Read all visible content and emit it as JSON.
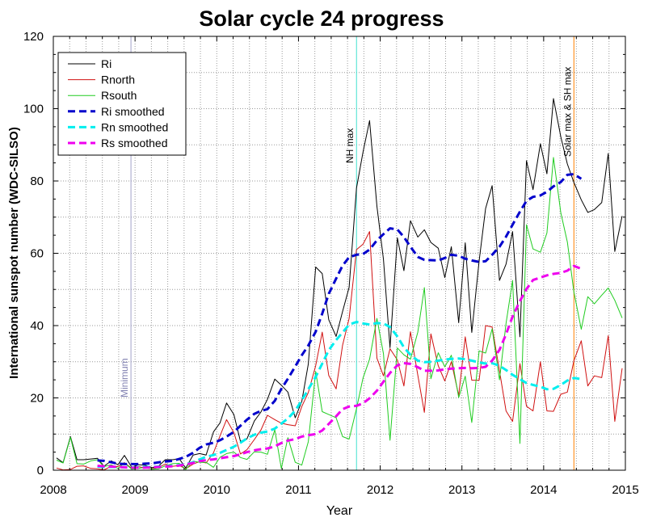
{
  "chart_data": {
    "type": "line",
    "title": "Solar cycle 24 progress",
    "xlabel": "Year",
    "ylabel": "International sunspot number (WDC-SILSO)",
    "xlim": [
      2008,
      2015
    ],
    "ylim": [
      0,
      120
    ],
    "x_ticks": [
      2008,
      2009,
      2010,
      2011,
      2012,
      2013,
      2014,
      2015
    ],
    "y_ticks": [
      0,
      20,
      40,
      60,
      80,
      100,
      120
    ],
    "grid": true,
    "legend_position": "top-left",
    "vertical_markers": [
      {
        "x": 2008.95,
        "label": "Minimum",
        "color": "#a0a0c8"
      },
      {
        "x": 2011.71,
        "label": "NH max",
        "color": "#40e0d0"
      },
      {
        "x": 2014.37,
        "label": "Solar max & SH max",
        "color": "#ff8000"
      }
    ],
    "series": [
      {
        "name": "Ri",
        "color": "#000000",
        "style": "solid",
        "width": 1,
        "x": [
          2008.04,
          2008.12,
          2008.21,
          2008.29,
          2008.37,
          2008.46,
          2008.54,
          2008.62,
          2008.71,
          2008.79,
          2008.87,
          2008.96,
          2009.04,
          2009.12,
          2009.21,
          2009.29,
          2009.37,
          2009.46,
          2009.54,
          2009.62,
          2009.71,
          2009.79,
          2009.87,
          2009.96,
          2010.04,
          2010.12,
          2010.21,
          2010.29,
          2010.37,
          2010.46,
          2010.54,
          2010.62,
          2010.71,
          2010.79,
          2010.87,
          2010.96,
          2011.04,
          2011.12,
          2011.21,
          2011.29,
          2011.37,
          2011.46,
          2011.54,
          2011.62,
          2011.71,
          2011.79,
          2011.87,
          2011.96,
          2012.04,
          2012.12,
          2012.21,
          2012.29,
          2012.37,
          2012.46,
          2012.54,
          2012.62,
          2012.71,
          2012.79,
          2012.87,
          2012.96,
          2013.04,
          2013.12,
          2013.21,
          2013.29,
          2013.37,
          2013.46,
          2013.54,
          2013.62,
          2013.71,
          2013.79,
          2013.87,
          2013.96,
          2014.04,
          2014.12,
          2014.21,
          2014.29,
          2014.37,
          2014.46,
          2014.54,
          2014.62,
          2014.71,
          2014.79,
          2014.87,
          2014.96
        ],
        "values": [
          3.4,
          2.1,
          9.3,
          2.9,
          2.9,
          3.1,
          3.3,
          1.1,
          2.6,
          1.5,
          4.1,
          0.8,
          1.5,
          1.4,
          0.7,
          1.2,
          2.9,
          2.9,
          3.2,
          0.6,
          4.2,
          4.6,
          4.2,
          10.6,
          13.1,
          18.6,
          15.4,
          8.0,
          8.7,
          13.6,
          16.1,
          19.6,
          25.2,
          23.5,
          21.6,
          14.5,
          19.0,
          29.4,
          56.2,
          54.4,
          41.6,
          37.0,
          43.9,
          50.6,
          78.0,
          88.0,
          96.7,
          73.0,
          58.3,
          33.9,
          64.3,
          55.2,
          69.0,
          64.5,
          66.5,
          63.0,
          61.4,
          53.3,
          61.8,
          40.8,
          62.9,
          38.1,
          57.9,
          72.4,
          78.7,
          52.5,
          57.0,
          66.0,
          36.9,
          85.6,
          77.6,
          90.3,
          82.0,
          102.8,
          92.2,
          84.7,
          79.6,
          74.8,
          71.3,
          72.1,
          74.0,
          87.6,
          60.5,
          70.3
        ]
      },
      {
        "name": "Rnorth",
        "color": "#d01010",
        "style": "solid",
        "width": 1,
        "x": [
          2008.04,
          2008.12,
          2008.21,
          2008.29,
          2008.37,
          2008.46,
          2008.54,
          2008.62,
          2008.71,
          2008.79,
          2008.87,
          2008.96,
          2009.04,
          2009.12,
          2009.21,
          2009.29,
          2009.37,
          2009.46,
          2009.54,
          2009.62,
          2009.71,
          2009.79,
          2009.87,
          2009.96,
          2010.04,
          2010.12,
          2010.21,
          2010.29,
          2010.37,
          2010.46,
          2010.54,
          2010.62,
          2010.71,
          2010.79,
          2010.87,
          2010.96,
          2011.04,
          2011.12,
          2011.21,
          2011.29,
          2011.37,
          2011.46,
          2011.54,
          2011.62,
          2011.71,
          2011.79,
          2011.87,
          2011.96,
          2012.04,
          2012.12,
          2012.21,
          2012.29,
          2012.37,
          2012.46,
          2012.54,
          2012.62,
          2012.71,
          2012.79,
          2012.87,
          2012.96,
          2013.04,
          2013.12,
          2013.21,
          2013.29,
          2013.37,
          2013.46,
          2013.54,
          2013.62,
          2013.71,
          2013.79,
          2013.87,
          2013.96,
          2014.04,
          2014.12,
          2014.21,
          2014.29,
          2014.37,
          2014.46,
          2014.54,
          2014.62,
          2014.71,
          2014.79,
          2014.87,
          2014.96
        ],
        "values": [
          0.6,
          0.1,
          0.2,
          1.1,
          1.2,
          0.5,
          0.4,
          0.1,
          1.1,
          1.0,
          2.1,
          0.5,
          1.0,
          0.6,
          0.4,
          0.8,
          1.7,
          1.1,
          1.3,
          0.4,
          1.7,
          2.4,
          2.0,
          4.8,
          9.5,
          14.0,
          10.4,
          4.5,
          5.7,
          8.5,
          11.1,
          15.2,
          14.0,
          13.0,
          12.6,
          12.3,
          17.6,
          21.5,
          28.9,
          38.2,
          26.2,
          22.5,
          34.6,
          42.0,
          61.0,
          62.5,
          66.0,
          31.0,
          26.1,
          33.6,
          30.5,
          23.3,
          38.3,
          26.3,
          16.0,
          37.7,
          28.9,
          24.7,
          30.0,
          20.7,
          36.9,
          24.9,
          24.9,
          40.0,
          39.6,
          27.5,
          16.4,
          13.5,
          29.5,
          17.7,
          16.4,
          30.0,
          16.4,
          16.3,
          21.0,
          21.6,
          30.3,
          35.8,
          23.3,
          26.1,
          25.6,
          37.2,
          13.5,
          28.2
        ]
      },
      {
        "name": "Rsouth",
        "color": "#20cc20",
        "style": "solid",
        "width": 1,
        "x": [
          2008.04,
          2008.12,
          2008.21,
          2008.29,
          2008.37,
          2008.46,
          2008.54,
          2008.62,
          2008.71,
          2008.79,
          2008.87,
          2008.96,
          2009.04,
          2009.12,
          2009.21,
          2009.29,
          2009.37,
          2009.46,
          2009.54,
          2009.62,
          2009.71,
          2009.79,
          2009.87,
          2009.96,
          2010.04,
          2010.12,
          2010.21,
          2010.29,
          2010.37,
          2010.46,
          2010.54,
          2010.62,
          2010.71,
          2010.79,
          2010.87,
          2010.96,
          2011.04,
          2011.12,
          2011.21,
          2011.29,
          2011.37,
          2011.46,
          2011.54,
          2011.62,
          2011.71,
          2011.79,
          2011.87,
          2011.96,
          2012.04,
          2012.12,
          2012.21,
          2012.29,
          2012.37,
          2012.46,
          2012.54,
          2012.62,
          2012.71,
          2012.79,
          2012.87,
          2012.96,
          2013.04,
          2013.12,
          2013.21,
          2013.29,
          2013.37,
          2013.46,
          2013.54,
          2013.62,
          2013.71,
          2013.79,
          2013.87,
          2013.96,
          2014.04,
          2014.12,
          2014.21,
          2014.29,
          2014.37,
          2014.46,
          2014.54,
          2014.62,
          2014.71,
          2014.79,
          2014.87,
          2014.96
        ],
        "values": [
          2.8,
          2.0,
          9.1,
          1.8,
          1.7,
          2.6,
          2.9,
          1.0,
          1.5,
          0.5,
          2.0,
          0.3,
          0.5,
          0.8,
          0.3,
          0.4,
          1.2,
          1.8,
          1.9,
          0.2,
          2.5,
          2.2,
          2.2,
          0.8,
          3.6,
          4.6,
          5.0,
          3.5,
          3.0,
          5.1,
          5.0,
          4.4,
          11.2,
          0.5,
          9.0,
          2.2,
          1.4,
          7.9,
          27.3,
          16.2,
          15.4,
          14.5,
          9.3,
          8.6,
          17.0,
          25.5,
          30.7,
          42.0,
          32.2,
          8.3,
          33.8,
          31.9,
          30.7,
          38.2,
          50.5,
          25.3,
          32.5,
          28.6,
          31.8,
          20.1,
          26.0,
          13.2,
          33.0,
          32.4,
          39.1,
          25.0,
          40.6,
          52.5,
          7.4,
          67.9,
          61.2,
          60.3,
          65.6,
          86.5,
          71.2,
          63.1,
          49.3,
          39.0,
          48.0,
          46.0,
          48.4,
          50.4,
          47.0,
          42.1
        ]
      },
      {
        "name": "Ri smoothed",
        "color": "#0000cc",
        "style": "dashed",
        "width": 3,
        "x": [
          2008.54,
          2008.62,
          2008.71,
          2008.79,
          2008.87,
          2008.96,
          2009.04,
          2009.12,
          2009.21,
          2009.29,
          2009.37,
          2009.46,
          2009.54,
          2009.62,
          2009.71,
          2009.79,
          2009.87,
          2009.96,
          2010.04,
          2010.12,
          2010.21,
          2010.29,
          2010.37,
          2010.46,
          2010.54,
          2010.62,
          2010.71,
          2010.79,
          2010.87,
          2010.96,
          2011.04,
          2011.12,
          2011.21,
          2011.29,
          2011.37,
          2011.46,
          2011.54,
          2011.62,
          2011.71,
          2011.79,
          2011.87,
          2011.96,
          2012.04,
          2012.12,
          2012.21,
          2012.29,
          2012.37,
          2012.46,
          2012.54,
          2012.62,
          2012.71,
          2012.79,
          2012.87,
          2012.96,
          2013.04,
          2013.12,
          2013.21,
          2013.29,
          2013.37,
          2013.46,
          2013.54,
          2013.62,
          2013.71,
          2013.79,
          2013.87,
          2013.96,
          2014.04,
          2014.12,
          2014.21,
          2014.29,
          2014.37,
          2014.46
        ],
        "values": [
          2.7,
          2.6,
          2.2,
          1.8,
          1.7,
          1.7,
          1.7,
          1.8,
          1.9,
          2.2,
          2.4,
          2.6,
          3.1,
          3.7,
          4.8,
          6.2,
          7.1,
          7.6,
          8.3,
          9.3,
          10.6,
          12.3,
          14.0,
          15.6,
          16.4,
          16.9,
          19.2,
          22.5,
          25.3,
          28.7,
          31.8,
          34.5,
          38.3,
          43.3,
          48.8,
          53.0,
          56.6,
          58.9,
          59.6,
          59.8,
          61.0,
          63.6,
          65.3,
          66.9,
          66.6,
          64.5,
          61.8,
          59.0,
          58.2,
          58.1,
          58.0,
          58.7,
          59.6,
          59.3,
          58.5,
          58.0,
          57.6,
          57.8,
          59.6,
          61.8,
          64.6,
          67.9,
          71.5,
          74.5,
          75.6,
          76.0,
          77.0,
          78.5,
          79.7,
          81.7,
          81.9,
          80.6
        ]
      },
      {
        "name": "Rn smoothed",
        "color": "#00eeee",
        "style": "dashed",
        "width": 3,
        "x": [
          2008.54,
          2008.62,
          2008.71,
          2008.79,
          2008.87,
          2008.96,
          2009.04,
          2009.12,
          2009.21,
          2009.29,
          2009.37,
          2009.46,
          2009.54,
          2009.62,
          2009.71,
          2009.79,
          2009.87,
          2009.96,
          2010.04,
          2010.12,
          2010.21,
          2010.29,
          2010.37,
          2010.46,
          2010.54,
          2010.62,
          2010.71,
          2010.79,
          2010.87,
          2010.96,
          2011.04,
          2011.12,
          2011.21,
          2011.29,
          2011.37,
          2011.46,
          2011.54,
          2011.62,
          2011.71,
          2011.79,
          2011.87,
          2011.96,
          2012.04,
          2012.12,
          2012.21,
          2012.29,
          2012.37,
          2012.46,
          2012.54,
          2012.62,
          2012.71,
          2012.79,
          2012.87,
          2012.96,
          2013.04,
          2013.12,
          2013.21,
          2013.29,
          2013.37,
          2013.46,
          2013.54,
          2013.62,
          2013.71,
          2013.79,
          2013.87,
          2013.96,
          2014.04,
          2014.12,
          2014.21,
          2014.29,
          2014.37,
          2014.46
        ],
        "values": [
          1.0,
          0.9,
          0.9,
          0.9,
          0.8,
          0.8,
          0.8,
          0.9,
          0.9,
          1.0,
          1.1,
          1.2,
          1.4,
          1.7,
          2.2,
          3.0,
          3.7,
          4.2,
          4.8,
          5.6,
          6.5,
          7.6,
          8.8,
          9.8,
          10.4,
          10.7,
          11.5,
          12.9,
          14.3,
          16.5,
          19.3,
          22.4,
          25.8,
          29.5,
          33.2,
          36.0,
          38.1,
          40.3,
          41.0,
          40.6,
          40.3,
          40.7,
          40.6,
          39.6,
          37.0,
          34.0,
          31.9,
          30.3,
          29.9,
          30.0,
          30.3,
          30.6,
          30.8,
          30.9,
          30.7,
          30.3,
          29.8,
          29.5,
          29.6,
          28.9,
          27.7,
          26.4,
          25.2,
          24.1,
          23.6,
          23.1,
          22.4,
          22.5,
          23.6,
          24.8,
          25.5,
          25.2
        ]
      },
      {
        "name": "Rs smoothed",
        "color": "#ee00ee",
        "style": "dashed",
        "width": 3,
        "x": [
          2008.54,
          2008.62,
          2008.71,
          2008.79,
          2008.87,
          2008.96,
          2009.04,
          2009.12,
          2009.21,
          2009.29,
          2009.37,
          2009.46,
          2009.54,
          2009.62,
          2009.71,
          2009.79,
          2009.87,
          2009.96,
          2010.04,
          2010.12,
          2010.21,
          2010.29,
          2010.37,
          2010.46,
          2010.54,
          2010.62,
          2010.71,
          2010.79,
          2010.87,
          2010.96,
          2011.04,
          2011.12,
          2011.21,
          2011.29,
          2011.37,
          2011.46,
          2011.54,
          2011.62,
          2011.71,
          2011.79,
          2011.87,
          2011.96,
          2012.04,
          2012.12,
          2012.21,
          2012.29,
          2012.37,
          2012.46,
          2012.54,
          2012.62,
          2012.71,
          2012.79,
          2012.87,
          2012.96,
          2013.04,
          2013.12,
          2013.21,
          2013.29,
          2013.37,
          2013.46,
          2013.54,
          2013.62,
          2013.71,
          2013.79,
          2013.87,
          2013.96,
          2014.04,
          2014.12,
          2014.21,
          2014.29,
          2014.37,
          2014.46
        ],
        "values": [
          1.2,
          1.1,
          1.0,
          0.9,
          0.8,
          0.7,
          0.7,
          0.7,
          0.8,
          0.9,
          1.0,
          1.1,
          1.3,
          1.6,
          2.0,
          2.5,
          2.8,
          3.0,
          3.3,
          3.6,
          3.9,
          4.4,
          5.0,
          5.5,
          5.8,
          6.0,
          6.6,
          7.5,
          8.2,
          8.6,
          9.3,
          9.7,
          10.0,
          11.0,
          12.8,
          14.9,
          16.9,
          17.6,
          17.8,
          18.5,
          19.9,
          22.0,
          24.5,
          26.9,
          29.0,
          29.6,
          29.4,
          28.5,
          27.5,
          27.5,
          27.6,
          27.9,
          28.1,
          28.2,
          28.3,
          28.2,
          28.3,
          28.6,
          30.3,
          33.3,
          37.6,
          42.5,
          46.8,
          50.1,
          52.6,
          53.3,
          53.9,
          54.3,
          54.6,
          55.2,
          56.5,
          55.7
        ]
      }
    ]
  }
}
